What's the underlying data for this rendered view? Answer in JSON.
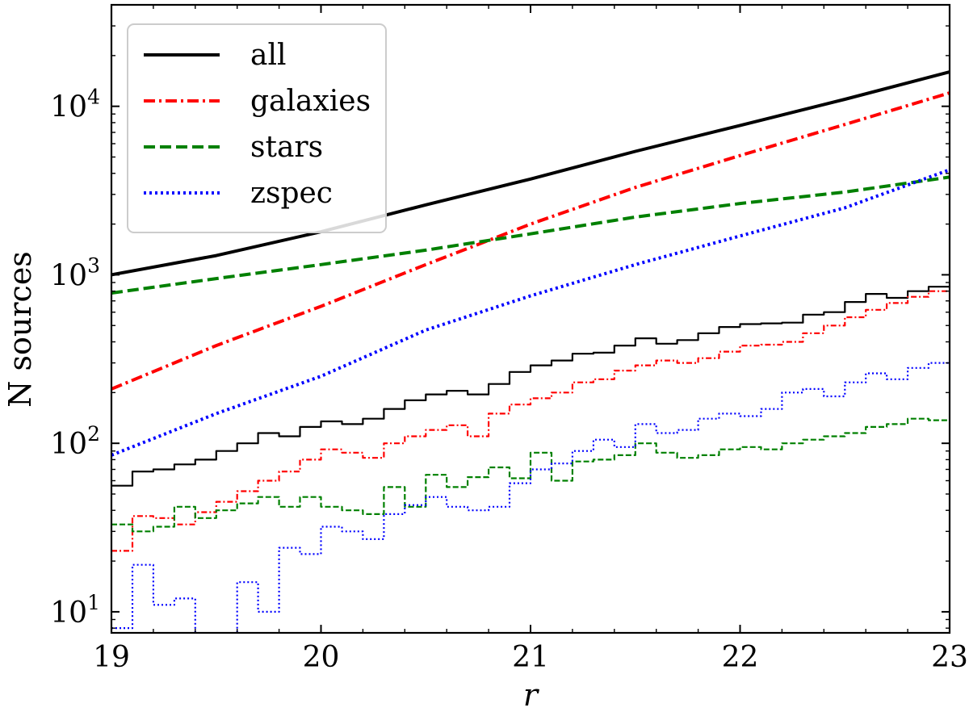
{
  "chart_data": {
    "type": "line",
    "xlabel": "r",
    "ylabel": "N sources",
    "xlim": [
      19,
      23
    ],
    "ylim": [
      7.5,
      40000
    ],
    "yscale": "log",
    "x_ticks": [
      {
        "value": 19,
        "label": "19"
      },
      {
        "value": 20,
        "label": "20"
      },
      {
        "value": 21,
        "label": "21"
      },
      {
        "value": 22,
        "label": "22"
      },
      {
        "value": 23,
        "label": "23"
      }
    ],
    "y_ticks": [
      {
        "value": 10,
        "base": "10",
        "exp": "1"
      },
      {
        "value": 100,
        "base": "10",
        "exp": "2"
      },
      {
        "value": 1000,
        "base": "10",
        "exp": "3"
      },
      {
        "value": 10000,
        "base": "10",
        "exp": "4"
      }
    ],
    "legend": {
      "placement": "top-left"
    },
    "series": [
      {
        "name": "all",
        "color": "#000000",
        "style": "solid",
        "kind": "cumulative",
        "x": [
          19.0,
          19.5,
          20.0,
          20.5,
          21.0,
          21.5,
          22.0,
          22.5,
          23.0
        ],
        "y": [
          1000,
          1300,
          1800,
          2600,
          3700,
          5400,
          7700,
          11000,
          16000
        ]
      },
      {
        "name": "galaxies",
        "color": "#ff0000",
        "style": "dashdot",
        "kind": "cumulative",
        "x": [
          19.0,
          19.5,
          20.0,
          20.5,
          20.8,
          21.0,
          21.5,
          22.0,
          22.5,
          23.0
        ],
        "y": [
          210,
          380,
          650,
          1150,
          1600,
          2000,
          3300,
          5100,
          7800,
          12000
        ]
      },
      {
        "name": "stars",
        "color": "#008000",
        "style": "dashed",
        "kind": "cumulative",
        "x": [
          19.0,
          19.5,
          20.0,
          20.5,
          20.8,
          21.0,
          21.5,
          22.0,
          22.5,
          23.0
        ],
        "y": [
          780,
          950,
          1150,
          1400,
          1600,
          1750,
          2200,
          2650,
          3100,
          3800
        ]
      },
      {
        "name": "zspec",
        "color": "#0000ff",
        "style": "dotted",
        "kind": "cumulative",
        "x": [
          19.0,
          19.5,
          20.0,
          20.5,
          21.0,
          21.5,
          22.0,
          22.5,
          23.0
        ],
        "y": [
          85,
          150,
          250,
          470,
          750,
          1150,
          1700,
          2500,
          4200
        ]
      },
      {
        "name": "",
        "color": "#000000",
        "style": "solid",
        "kind": "step",
        "x": [
          19.0,
          19.1,
          19.2,
          19.3,
          19.4,
          19.5,
          19.6,
          19.7,
          19.8,
          19.9,
          20.0,
          20.1,
          20.2,
          20.3,
          20.4,
          20.5,
          20.6,
          20.7,
          20.8,
          20.9,
          21.0,
          21.1,
          21.2,
          21.3,
          21.4,
          21.5,
          21.6,
          21.7,
          21.8,
          21.9,
          22.0,
          22.1,
          22.2,
          22.3,
          22.4,
          22.5,
          22.6,
          22.7,
          22.8,
          22.9,
          23.0
        ],
        "y": [
          56,
          68,
          70,
          75,
          80,
          90,
          100,
          115,
          110,
          125,
          135,
          130,
          140,
          160,
          180,
          195,
          205,
          195,
          225,
          265,
          290,
          310,
          340,
          345,
          380,
          420,
          390,
          410,
          450,
          490,
          510,
          515,
          520,
          580,
          600,
          690,
          770,
          730,
          800,
          850,
          900
        ]
      },
      {
        "name": "",
        "color": "#ff0000",
        "style": "dashdot",
        "kind": "step",
        "x": [
          19.0,
          19.1,
          19.2,
          19.3,
          19.4,
          19.5,
          19.6,
          19.7,
          19.8,
          19.9,
          20.0,
          20.1,
          20.2,
          20.3,
          20.4,
          20.5,
          20.6,
          20.7,
          20.8,
          20.9,
          21.0,
          21.1,
          21.2,
          21.3,
          21.4,
          21.5,
          21.6,
          21.7,
          21.8,
          21.9,
          22.0,
          22.1,
          22.2,
          22.3,
          22.4,
          22.5,
          22.6,
          22.7,
          22.8,
          22.9,
          23.0
        ],
        "y": [
          23,
          37,
          36,
          33,
          39,
          45,
          52,
          60,
          68,
          80,
          92,
          88,
          82,
          100,
          110,
          120,
          128,
          110,
          150,
          170,
          185,
          200,
          230,
          240,
          270,
          290,
          310,
          300,
          320,
          350,
          380,
          385,
          400,
          450,
          500,
          560,
          620,
          680,
          740,
          800,
          1000
        ]
      },
      {
        "name": "",
        "color": "#008000",
        "style": "dashed",
        "kind": "step",
        "x": [
          19.0,
          19.1,
          19.2,
          19.3,
          19.4,
          19.5,
          19.6,
          19.7,
          19.8,
          19.9,
          20.0,
          20.1,
          20.2,
          20.3,
          20.4,
          20.5,
          20.6,
          20.7,
          20.8,
          20.9,
          21.0,
          21.1,
          21.2,
          21.3,
          21.4,
          21.5,
          21.6,
          21.7,
          21.8,
          21.9,
          22.0,
          22.1,
          22.2,
          22.3,
          22.4,
          22.5,
          22.6,
          22.7,
          22.8,
          22.9,
          23.0
        ],
        "y": [
          33,
          30,
          32,
          42,
          36,
          40,
          44,
          48,
          42,
          48,
          42,
          40,
          38,
          55,
          42,
          65,
          55,
          63,
          72,
          62,
          88,
          60,
          78,
          80,
          85,
          100,
          88,
          82,
          85,
          92,
          95,
          92,
          100,
          105,
          110,
          115,
          125,
          130,
          140,
          137,
          137
        ]
      },
      {
        "name": "",
        "color": "#0000ff",
        "style": "dotted",
        "kind": "step",
        "x": [
          19.0,
          19.1,
          19.2,
          19.3,
          19.4,
          19.5,
          19.6,
          19.7,
          19.8,
          19.9,
          20.0,
          20.1,
          20.2,
          20.3,
          20.4,
          20.5,
          20.6,
          20.7,
          20.8,
          20.9,
          21.0,
          21.1,
          21.2,
          21.3,
          21.4,
          21.5,
          21.6,
          21.7,
          21.8,
          21.9,
          22.0,
          22.1,
          22.2,
          22.3,
          22.4,
          22.5,
          22.6,
          22.7,
          22.8,
          22.9,
          23.0
        ],
        "y": [
          8,
          19,
          11,
          12,
          6,
          6,
          15,
          10,
          24,
          22,
          32,
          30,
          27,
          38,
          43,
          48,
          42,
          40,
          42,
          58,
          70,
          76,
          90,
          105,
          95,
          130,
          115,
          120,
          140,
          150,
          145,
          160,
          200,
          210,
          190,
          230,
          260,
          240,
          280,
          300,
          330
        ]
      }
    ]
  }
}
